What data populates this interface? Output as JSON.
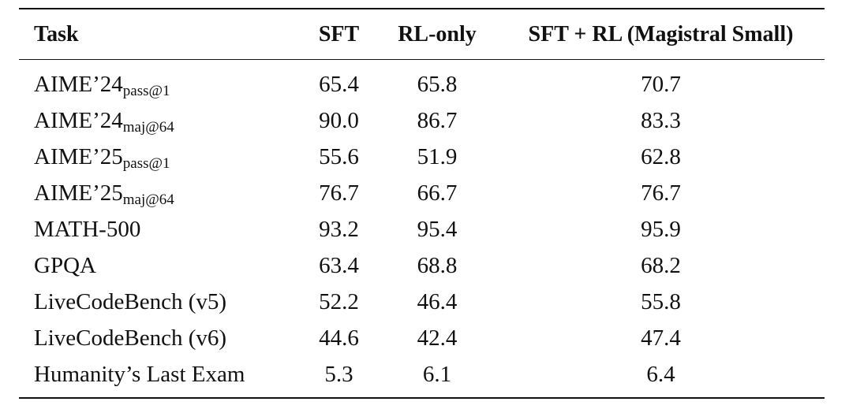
{
  "table": {
    "headers": {
      "task": "Task",
      "sft": "SFT",
      "rl_only": "RL-only",
      "sft_rl": "SFT + RL (Magistral Small)"
    },
    "rows": [
      {
        "task": "AIME’24",
        "sub": "pass@1",
        "sft": "65.4",
        "rl_only": "65.8",
        "sft_rl": "70.7"
      },
      {
        "task": "AIME’24",
        "sub": "maj@64",
        "sft": "90.0",
        "rl_only": "86.7",
        "sft_rl": "83.3"
      },
      {
        "task": "AIME’25",
        "sub": "pass@1",
        "sft": "55.6",
        "rl_only": "51.9",
        "sft_rl": "62.8"
      },
      {
        "task": "AIME’25",
        "sub": "maj@64",
        "sft": "76.7",
        "rl_only": "66.7",
        "sft_rl": "76.7"
      },
      {
        "task": "MATH-500",
        "sub": "",
        "sft": "93.2",
        "rl_only": "95.4",
        "sft_rl": "95.9"
      },
      {
        "task": "GPQA",
        "sub": "",
        "sft": "63.4",
        "rl_only": "68.8",
        "sft_rl": "68.2"
      },
      {
        "task": "LiveCodeBench (v5)",
        "sub": "",
        "sft": "52.2",
        "rl_only": "46.4",
        "sft_rl": "55.8"
      },
      {
        "task": "LiveCodeBench (v6)",
        "sub": "",
        "sft": "44.6",
        "rl_only": "42.4",
        "sft_rl": "47.4"
      },
      {
        "task": "Humanity’s Last Exam",
        "sub": "",
        "sft": "5.3",
        "rl_only": "6.1",
        "sft_rl": "6.4"
      }
    ]
  }
}
